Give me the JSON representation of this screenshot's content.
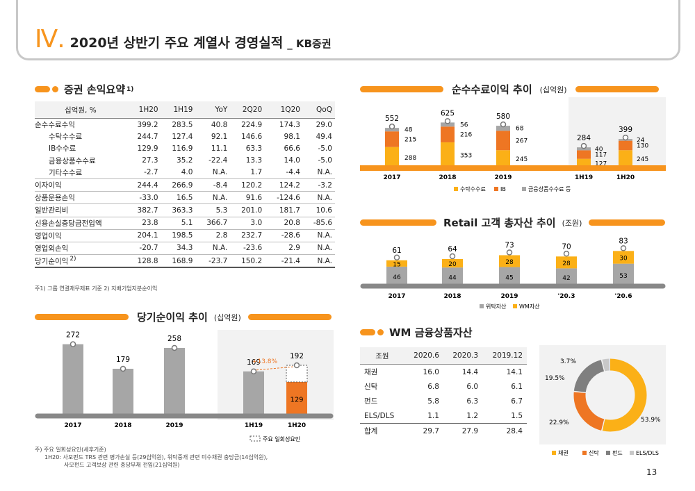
{
  "header": {
    "roman": "Ⅳ.",
    "title": "2020년 상반기 주요 계열사 경영실적",
    "subtitle": "_ KB증권"
  },
  "income": {
    "title": "증권 손익요약",
    "sup": "1)",
    "columns": [
      "십억원, %",
      "1H20",
      "1H19",
      "YoY",
      "2Q20",
      "1Q20",
      "QoQ"
    ],
    "rows": [
      [
        "순수수료수익",
        "399.2",
        "283.5",
        "40.8",
        "224.9",
        "174.3",
        "29.0"
      ],
      [
        "수탁수수료",
        "244.7",
        "127.4",
        "92.1",
        "146.6",
        "98.1",
        "49.4"
      ],
      [
        "IB수수료",
        "129.9",
        "116.9",
        "11.1",
        "63.3",
        "66.6",
        "-5.0"
      ],
      [
        "금융상품수수료",
        "27.3",
        "35.2",
        "-22.4",
        "13.3",
        "14.0",
        "-5.0"
      ],
      [
        "기타수수료",
        "-2.7",
        "4.0",
        "N.A.",
        "1.7",
        "-4.4",
        "N.A."
      ],
      [
        "이자이익",
        "244.4",
        "266.9",
        "-8.4",
        "120.2",
        "124.2",
        "-3.2"
      ],
      [
        "상품운용손익",
        "-33.0",
        "16.5",
        "N.A.",
        "91.6",
        "-124.6",
        "N.A."
      ],
      [
        "일반관리비",
        "382.7",
        "363.3",
        "5.3",
        "201.0",
        "181.7",
        "10.6"
      ],
      [
        "신용손실충당금전입액",
        "23.8",
        "5.1",
        "366.7",
        "3.0",
        "20.8",
        "-85.6"
      ],
      [
        "영업이익",
        "204.1",
        "198.5",
        "2.8",
        "232.7",
        "-28.6",
        "N.A."
      ],
      [
        "영업외손익",
        "-20.7",
        "34.3",
        "N.A.",
        "-23.6",
        "2.9",
        "N.A."
      ],
      [
        "당기순이익",
        "128.8",
        "168.9",
        "-23.7",
        "150.2",
        "-21.4",
        "N.A."
      ]
    ],
    "last_sup": "2)",
    "note": "주1) 그룹 연결재무제표 기준   2) 지배기업지분순이익"
  },
  "fee": {
    "title": "순수수료이익 추이",
    "unit": "(십억원)",
    "years": [
      "2017",
      "2018",
      "2019"
    ],
    "totals": [
      "552",
      "625",
      "580"
    ],
    "brokerage": [
      288,
      353,
      245
    ],
    "ib": [
      215,
      216,
      267
    ],
    "product": [
      48,
      56,
      68
    ],
    "half": [
      "1H19",
      "1H20"
    ],
    "half_totals": [
      "284",
      "399"
    ],
    "half_brokerage": [
      127,
      245
    ],
    "half_ib": [
      117,
      130
    ],
    "half_product": [
      40,
      24
    ],
    "legend": [
      "수탁수수료",
      "IB",
      "금융상품수수료 등"
    ],
    "colors": {
      "brokerage": "#fbb017",
      "ib": "#ee7623",
      "product": "#a6a6a6"
    }
  },
  "retail": {
    "title": "Retail 고객 총자산 추이",
    "unit": "(조원)",
    "cats": [
      "2017",
      "2018",
      "2019",
      "'20.3",
      "'20.6"
    ],
    "totals": [
      "61",
      "64",
      "73",
      "70",
      "83"
    ],
    "deposit": [
      46,
      44,
      45,
      42,
      53
    ],
    "wm": [
      15,
      20,
      28,
      28,
      30
    ],
    "legend": [
      "위탁자산",
      "WM자산"
    ]
  },
  "net": {
    "title": "당기순이익 추이",
    "unit": "(십억원)",
    "years": [
      "2017",
      "2018",
      "2019"
    ],
    "values": [
      272,
      179,
      258
    ],
    "half": [
      "1H19",
      "1H20"
    ],
    "half_values": [
      169,
      129
    ],
    "half_total": "192",
    "growth": "+13.8%",
    "legend": "주요 일회성요인",
    "notes": [
      "주) 주요 일회성요인(세후기준)",
      "1H20: 사모펀드 TRS 관련 평가손실 등(29십억원), 위탁중개 관련 미수채권 충당금(14십억원),",
      "사모펀드 고객보상 관련 충당부채 전입(21십억원)"
    ]
  },
  "wm": {
    "title": "WM 금융상품자산",
    "columns": [
      "조원",
      "2020.6",
      "2020.3",
      "2019.12"
    ],
    "rows": [
      [
        "채권",
        "16.0",
        "14.4",
        "14.1"
      ],
      [
        "신탁",
        "6.8",
        "6.0",
        "6.1"
      ],
      [
        "펀드",
        "5.8",
        "6.3",
        "6.7"
      ],
      [
        "ELS/DLS",
        "1.1",
        "1.2",
        "1.5"
      ]
    ],
    "total": [
      "합계",
      "29.7",
      "27.9",
      "28.4"
    ],
    "pie_labels": [
      "53.9%",
      "22.9%",
      "19.5%",
      "3.7%"
    ],
    "pie_values": [
      53.9,
      22.9,
      19.5,
      3.7
    ],
    "legend": [
      "채권",
      "신탁",
      "펀드",
      "ELS/DLS"
    ],
    "colors": [
      "#fbb017",
      "#ee7623",
      "#7f7f7f",
      "#c8c8c8"
    ]
  },
  "page": "13"
}
